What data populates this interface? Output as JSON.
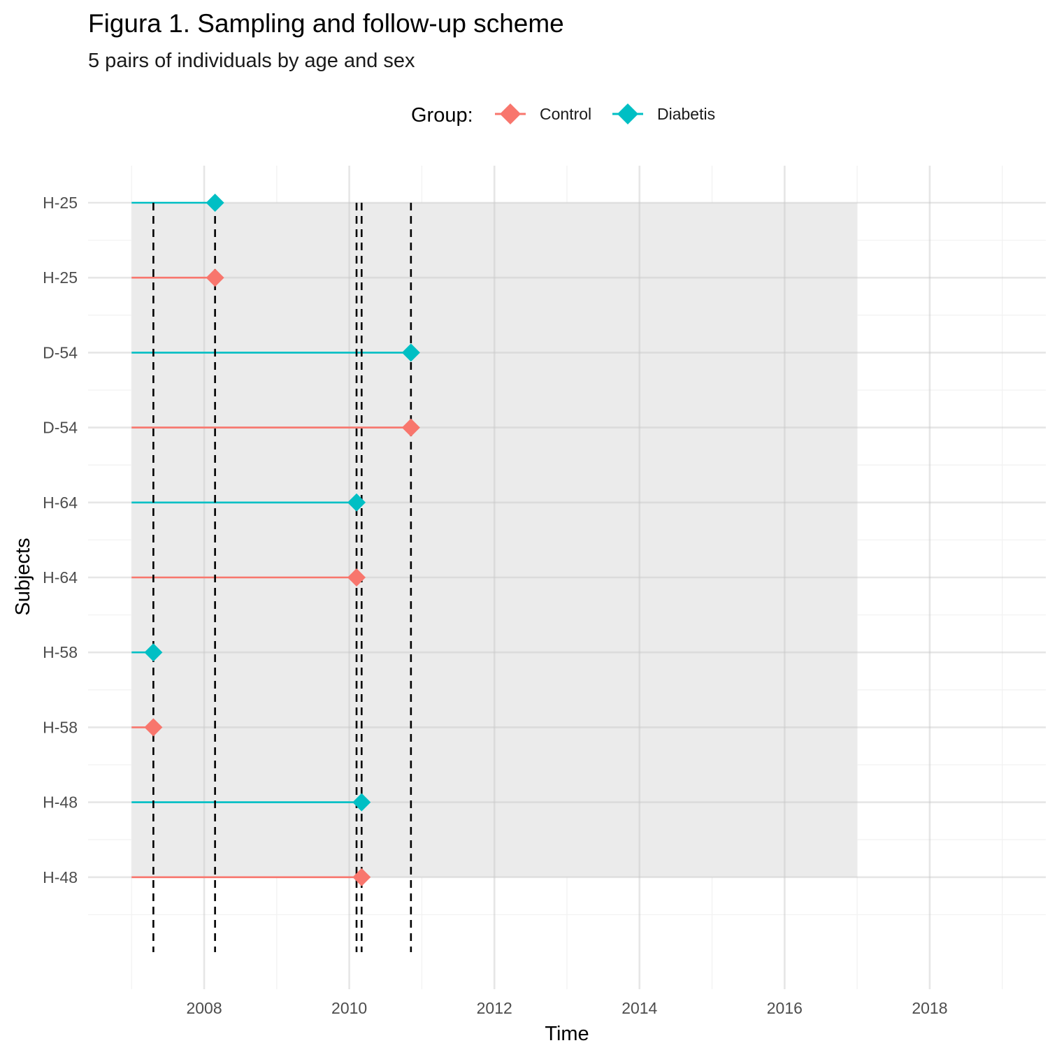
{
  "chart_data": {
    "type": "timeline",
    "title": "Figura 1. Sampling and follow-up scheme",
    "subtitle": "5 pairs of individuals by age and sex",
    "xlabel": "Time",
    "ylabel": "Subjects",
    "xlim": [
      2006.4,
      2019.6
    ],
    "x_ticks": [
      2008,
      2010,
      2012,
      2014,
      2016,
      2018
    ],
    "x_tick_labels": [
      "2008",
      "2010",
      "2012",
      "2014",
      "2016",
      "2018"
    ],
    "grid": true,
    "legend": {
      "title": "Group:",
      "position": "top",
      "entries": [
        {
          "label": "Control",
          "color": "#F8766D"
        },
        {
          "label": "Diabetis",
          "color": "#00BFC4"
        }
      ]
    },
    "study_period": {
      "start": 2007.0,
      "end": 2017.0,
      "color": "#EBEBEB"
    },
    "follow_up_start": 2007.0,
    "rows": [
      {
        "label": "H-25",
        "group": "Diabetis",
        "end": 2008.15
      },
      {
        "label": "H-25",
        "group": "Control",
        "end": 2008.15
      },
      {
        "label": "D-54",
        "group": "Diabetis",
        "end": 2010.85
      },
      {
        "label": "D-54",
        "group": "Control",
        "end": 2010.85
      },
      {
        "label": "H-64",
        "group": "Diabetis",
        "end": 2010.1
      },
      {
        "label": "H-64",
        "group": "Control",
        "end": 2010.1
      },
      {
        "label": "H-58",
        "group": "Diabetis",
        "end": 2007.3
      },
      {
        "label": "H-58",
        "group": "Control",
        "end": 2007.3
      },
      {
        "label": "H-48",
        "group": "Diabetis",
        "end": 2010.17
      },
      {
        "label": "H-48",
        "group": "Control",
        "end": 2010.17
      }
    ],
    "vertical_lines": [
      2007.3,
      2008.15,
      2010.1,
      2010.17,
      2010.85
    ],
    "colors": {
      "Control": "#F8766D",
      "Diabetis": "#00BFC4"
    }
  }
}
